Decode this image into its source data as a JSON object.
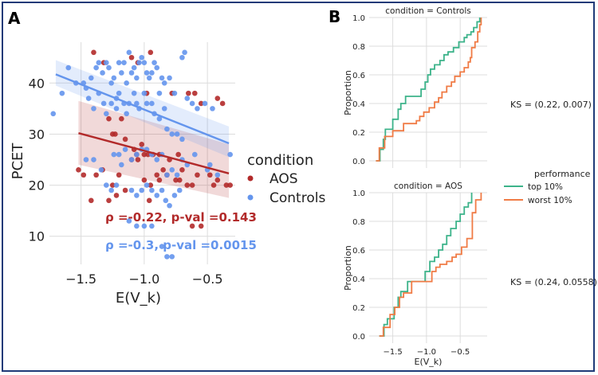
{
  "panels": {
    "a_label": "A",
    "b_label": "B"
  },
  "chart_data": [
    {
      "type": "scatter",
      "panel": "A",
      "xlabel": "E(V_k)",
      "ylabel": "PCET",
      "xlim": [
        -1.75,
        -0.28
      ],
      "ylim": [
        4.5,
        48
      ],
      "xticks": [
        -1.5,
        -1.0,
        -0.5
      ],
      "xtick_labels": [
        "−1.5",
        "−1.0",
        "−0.5"
      ],
      "yticks": [
        10,
        20,
        30,
        40
      ],
      "ytick_labels": [
        "10",
        "20",
        "30",
        "40"
      ],
      "grid": true,
      "legend": {
        "title": "condition",
        "entries": [
          {
            "name": "AOS",
            "color": "#b22a2a"
          },
          {
            "name": "Controls",
            "color": "#6495ed"
          }
        ]
      },
      "annotations": [
        {
          "series": "AOS",
          "text": "ρ =-0.22, p-val =0.143",
          "color": "#b22a2a"
        },
        {
          "series": "Controls",
          "text": "ρ =-0.3, p-val =0.0015",
          "color": "#6495ed"
        }
      ],
      "series": [
        {
          "name": "AOS",
          "color": "#b22a2a",
          "fit": {
            "x": [
              -1.52,
              -0.33
            ],
            "y": [
              30.2,
              22.3
            ],
            "ci_low": [
              24,
              17.5
            ],
            "ci_high": [
              36.5,
              28
            ]
          },
          "points": [
            [
              -1.4,
              46
            ],
            [
              -1.32,
              44
            ],
            [
              -1.1,
              45
            ],
            [
              -1.05,
              44
            ],
            [
              -0.95,
              46
            ],
            [
              -0.42,
              37
            ],
            [
              -0.55,
              36
            ],
            [
              -0.38,
              36
            ],
            [
              -0.78,
              38
            ],
            [
              -0.65,
              38
            ],
            [
              -0.6,
              38
            ],
            [
              -1.28,
              33
            ],
            [
              -1.18,
              33
            ],
            [
              -0.98,
              38
            ],
            [
              -1.25,
              30
            ],
            [
              -1.23,
              30
            ],
            [
              -1.15,
              29
            ],
            [
              -1.02,
              28
            ],
            [
              -0.93,
              26
            ],
            [
              -1.08,
              27
            ],
            [
              -1.0,
              26
            ],
            [
              -1.06,
              26
            ],
            [
              -0.97,
              26
            ],
            [
              -0.88,
              26
            ],
            [
              -0.8,
              25
            ],
            [
              -0.73,
              26
            ],
            [
              -0.7,
              23
            ],
            [
              -0.85,
              23
            ],
            [
              -0.82,
              22
            ],
            [
              -0.9,
              22
            ],
            [
              -1.05,
              25
            ],
            [
              -1.1,
              25
            ],
            [
              -1.2,
              22
            ],
            [
              -1.25,
              20
            ],
            [
              -1.33,
              23
            ],
            [
              -1.38,
              22
            ],
            [
              -1.48,
              22
            ],
            [
              -1.52,
              23
            ],
            [
              -1.22,
              18
            ],
            [
              -1.15,
              19
            ],
            [
              -1.0,
              21
            ],
            [
              -0.95,
              20
            ],
            [
              -0.88,
              21
            ],
            [
              -0.75,
              21
            ],
            [
              -0.72,
              21
            ],
            [
              -0.66,
              20
            ],
            [
              -0.62,
              20
            ],
            [
              -0.58,
              22
            ],
            [
              -0.48,
              22
            ],
            [
              -0.45,
              20
            ],
            [
              -0.42,
              21
            ],
            [
              -0.35,
              20
            ],
            [
              -0.32,
              20
            ],
            [
              -1.42,
              17
            ],
            [
              -1.28,
              17
            ],
            [
              -0.96,
              17
            ],
            [
              -0.62,
              12
            ],
            [
              -0.55,
              12
            ]
          ]
        },
        {
          "name": "Controls",
          "color": "#6495ed",
          "fit": {
            "x": [
              -1.7,
              -0.33
            ],
            "y": [
              41.7,
              28.2
            ],
            "ci_low": [
              39.5,
              25.5
            ],
            "ci_high": [
              44.5,
              31.5
            ]
          },
          "points": [
            [
              -1.72,
              34
            ],
            [
              -1.65,
              38
            ],
            [
              -1.6,
              43
            ],
            [
              -1.54,
              40
            ],
            [
              -1.48,
              40
            ],
            [
              -1.46,
              39
            ],
            [
              -1.42,
              41
            ],
            [
              -1.38,
              43
            ],
            [
              -1.36,
              44
            ],
            [
              -1.33,
              42
            ],
            [
              -1.3,
              44
            ],
            [
              -1.28,
              43
            ],
            [
              -1.26,
              40
            ],
            [
              -1.24,
              41
            ],
            [
              -1.22,
              37
            ],
            [
              -1.2,
              44
            ],
            [
              -1.18,
              42
            ],
            [
              -1.16,
              44
            ],
            [
              -1.14,
              40
            ],
            [
              -1.12,
              46
            ],
            [
              -1.1,
              42
            ],
            [
              -1.08,
              43
            ],
            [
              -1.06,
              41
            ],
            [
              -1.04,
              44
            ],
            [
              -1.02,
              45
            ],
            [
              -1.0,
              44
            ],
            [
              -0.98,
              42
            ],
            [
              -0.96,
              41
            ],
            [
              -0.94,
              42
            ],
            [
              -0.92,
              44
            ],
            [
              -0.9,
              43
            ],
            [
              -0.88,
              38
            ],
            [
              -0.86,
              41
            ],
            [
              -0.84,
              40
            ],
            [
              -0.8,
              41
            ],
            [
              -0.76,
              38
            ],
            [
              -0.7,
              45
            ],
            [
              -0.68,
              46
            ],
            [
              -0.66,
              37
            ],
            [
              -0.62,
              36
            ],
            [
              -0.58,
              35
            ],
            [
              -0.52,
              36
            ],
            [
              -0.46,
              35
            ],
            [
              -1.44,
              37
            ],
            [
              -1.4,
              35
            ],
            [
              -1.36,
              38
            ],
            [
              -1.32,
              36
            ],
            [
              -1.3,
              34
            ],
            [
              -1.26,
              36
            ],
            [
              -1.22,
              35
            ],
            [
              -1.2,
              38
            ],
            [
              -1.16,
              36
            ],
            [
              -1.14,
              34
            ],
            [
              -1.12,
              36
            ],
            [
              -1.08,
              38
            ],
            [
              -1.06,
              36
            ],
            [
              -1.04,
              35
            ],
            [
              -1.0,
              38
            ],
            [
              -0.98,
              36
            ],
            [
              -0.94,
              36
            ],
            [
              -0.92,
              34
            ],
            [
              -0.88,
              33
            ],
            [
              -0.84,
              35
            ],
            [
              -0.82,
              31
            ],
            [
              -0.78,
              30
            ],
            [
              -0.74,
              30
            ],
            [
              -0.7,
              29
            ],
            [
              -1.24,
              26
            ],
            [
              -1.2,
              26
            ],
            [
              -1.18,
              24
            ],
            [
              -1.15,
              27
            ],
            [
              -1.1,
              25
            ],
            [
              -1.06,
              26
            ],
            [
              -1.02,
              27
            ],
            [
              -0.98,
              27
            ],
            [
              -0.94,
              26
            ],
            [
              -0.9,
              25
            ],
            [
              -0.86,
              26
            ],
            [
              -0.82,
              22
            ],
            [
              -0.78,
              23
            ],
            [
              -0.74,
              22
            ],
            [
              -0.7,
              25
            ],
            [
              -0.66,
              24
            ],
            [
              -0.6,
              26
            ],
            [
              -0.5,
              23
            ],
            [
              -0.48,
              24
            ],
            [
              -0.42,
              22
            ],
            [
              -1.46,
              25
            ],
            [
              -1.4,
              25
            ],
            [
              -1.34,
              23
            ],
            [
              -1.3,
              20
            ],
            [
              -1.26,
              19
            ],
            [
              -1.22,
              20
            ],
            [
              -1.1,
              19
            ],
            [
              -1.06,
              18
            ],
            [
              -1.02,
              19
            ],
            [
              -0.98,
              20
            ],
            [
              -0.94,
              19
            ],
            [
              -0.9,
              18
            ],
            [
              -0.86,
              19
            ],
            [
              -0.83,
              17
            ],
            [
              -0.8,
              16
            ],
            [
              -0.76,
              18
            ],
            [
              -0.72,
              19
            ],
            [
              -1.12,
              13
            ],
            [
              -1.06,
              12
            ],
            [
              -1.0,
              12
            ],
            [
              -0.94,
              12
            ],
            [
              -0.86,
              8
            ],
            [
              -0.82,
              6
            ],
            [
              -0.78,
              6
            ],
            [
              -0.32,
              26
            ]
          ]
        }
      ]
    },
    {
      "type": "line",
      "panel": "B-top",
      "title": "condition = Controls",
      "xlabel": "",
      "ylabel": "Proportion",
      "xlim": [
        -1.85,
        -0.1
      ],
      "ylim": [
        -0.05,
        1.0
      ],
      "xticks": [
        -1.5,
        -1.0,
        -0.5
      ],
      "yticks": [
        0.0,
        0.2,
        0.4,
        0.6,
        0.8,
        1.0
      ],
      "ytick_labels": [
        "0.0",
        "0.2",
        "0.4",
        "0.6",
        "0.8",
        "1.0"
      ],
      "annotation": "KS = (0.22, 0.007)",
      "series": [
        {
          "name": "top 10%",
          "color": "#3cb38a",
          "x": [
            -1.75,
            -1.69,
            -1.64,
            -1.61,
            -1.58,
            -1.5,
            -1.42,
            -1.38,
            -1.31,
            -1.24,
            -1.18,
            -1.08,
            -1.02,
            -0.98,
            -0.94,
            -0.88,
            -0.8,
            -0.74,
            -0.68,
            -0.6,
            -0.52,
            -0.44,
            -0.4,
            -0.34,
            -0.3,
            -0.25,
            -0.21
          ],
          "y": [
            0.0,
            0.08,
            0.15,
            0.22,
            0.22,
            0.29,
            0.36,
            0.4,
            0.45,
            0.45,
            0.45,
            0.5,
            0.55,
            0.6,
            0.64,
            0.67,
            0.7,
            0.74,
            0.76,
            0.79,
            0.83,
            0.86,
            0.88,
            0.9,
            0.93,
            0.97,
            1.0
          ]
        },
        {
          "name": "worst 10%",
          "color": "#f07b45",
          "x": [
            -1.75,
            -1.7,
            -1.62,
            -1.5,
            -1.34,
            -1.15,
            -1.1,
            -1.04,
            -0.96,
            -0.88,
            -0.82,
            -0.77,
            -0.7,
            -0.63,
            -0.58,
            -0.5,
            -0.44,
            -0.38,
            -0.35,
            -0.33,
            -0.28,
            -0.24,
            -0.21,
            -0.19
          ],
          "y": [
            0.0,
            0.09,
            0.17,
            0.21,
            0.26,
            0.28,
            0.31,
            0.34,
            0.37,
            0.41,
            0.44,
            0.48,
            0.52,
            0.55,
            0.59,
            0.62,
            0.65,
            0.69,
            0.72,
            0.79,
            0.83,
            0.9,
            0.95,
            1.0
          ]
        }
      ]
    },
    {
      "type": "line",
      "panel": "B-bottom",
      "title": "condition = AOS",
      "xlabel": "E(V_k)",
      "ylabel": "Proportion",
      "xlim": [
        -1.85,
        -0.1
      ],
      "ylim": [
        -0.05,
        1.0
      ],
      "xticks": [
        -1.5,
        -1.0,
        -0.5
      ],
      "xtick_labels": [
        "−1.5",
        "−1.0",
        "−0.5"
      ],
      "yticks": [
        0.0,
        0.2,
        0.4,
        0.6,
        0.8,
        1.0
      ],
      "ytick_labels": [
        "0.0",
        "0.2",
        "0.4",
        "0.6",
        "0.8",
        "1.0"
      ],
      "annotation": "KS = (0.24, 0.0558)",
      "legend": {
        "title": "performance",
        "entries": [
          {
            "name": "top 10%",
            "color": "#3cb38a"
          },
          {
            "name": "worst 10%",
            "color": "#f07b45"
          }
        ]
      },
      "series": [
        {
          "name": "top 10%",
          "color": "#3cb38a",
          "x": [
            -1.7,
            -1.63,
            -1.58,
            -1.48,
            -1.42,
            -1.38,
            -1.28,
            -1.22,
            -1.02,
            -0.95,
            -0.88,
            -0.82,
            -0.76,
            -0.7,
            -0.64,
            -0.56,
            -0.5,
            -0.44,
            -0.38,
            -0.33
          ],
          "y": [
            0.0,
            0.08,
            0.12,
            0.2,
            0.27,
            0.31,
            0.38,
            0.38,
            0.45,
            0.52,
            0.55,
            0.6,
            0.64,
            0.7,
            0.75,
            0.8,
            0.85,
            0.9,
            0.93,
            1.0
          ]
        },
        {
          "name": "worst 10%",
          "color": "#f07b45",
          "x": [
            -1.7,
            -1.64,
            -1.54,
            -1.47,
            -1.4,
            -1.34,
            -1.22,
            -1.02,
            -0.92,
            -0.86,
            -0.8,
            -0.7,
            -0.62,
            -0.56,
            -0.48,
            -0.4,
            -0.32,
            -0.27,
            -0.19
          ],
          "y": [
            0.0,
            0.06,
            0.15,
            0.2,
            0.27,
            0.3,
            0.38,
            0.38,
            0.45,
            0.48,
            0.5,
            0.52,
            0.55,
            0.57,
            0.62,
            0.68,
            0.86,
            0.95,
            1.0
          ]
        }
      ]
    }
  ]
}
